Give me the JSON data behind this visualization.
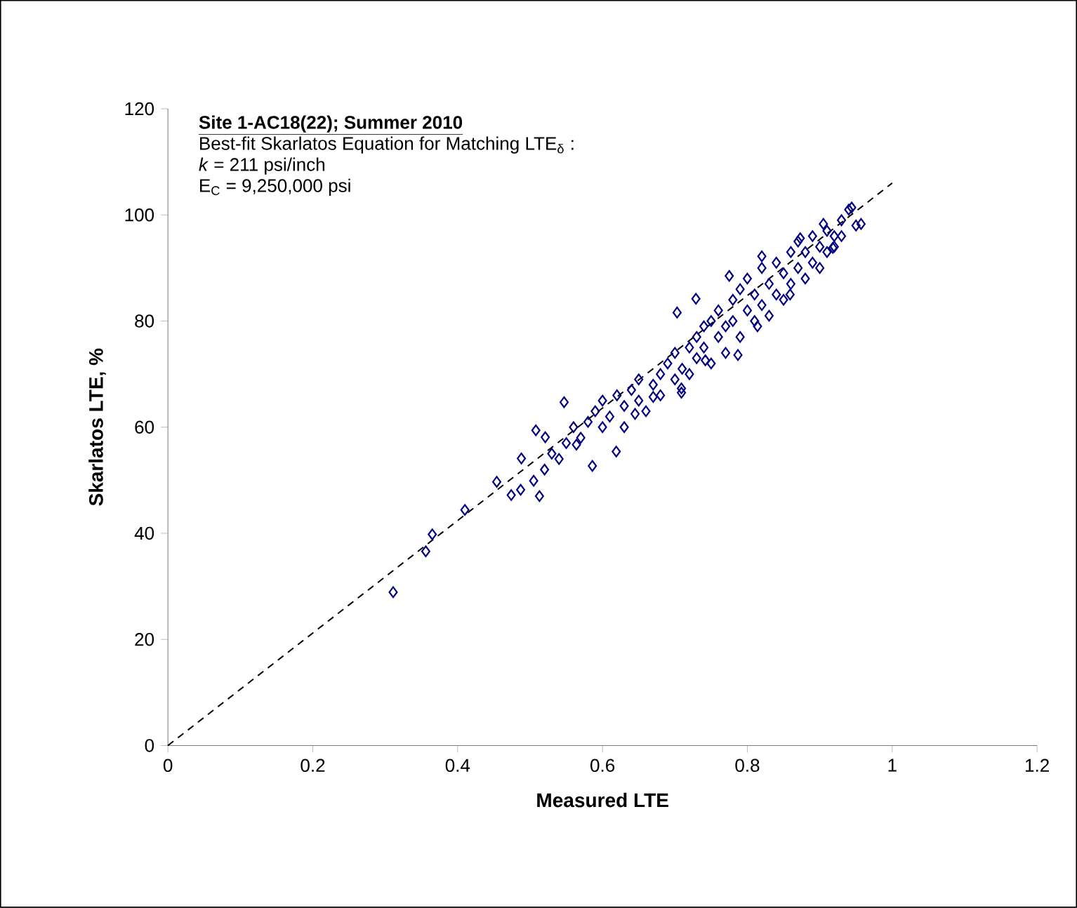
{
  "chart_data": {
    "type": "scatter",
    "title": "Site 1-AC18(22);  Summer 2010",
    "annotations": [
      "Best-fit Skarlatos Equation for Matching LTE$_{δ}$ :",
      "*k* = 211 psi/inch",
      "E$_{C}$ = 9,250,000 psi"
    ],
    "xlabel": "Measured LTE",
    "ylabel": "Skarlatos LTE, %",
    "xlim": [
      0,
      1.2
    ],
    "ylim": [
      0,
      120
    ],
    "xticks": [
      0,
      0.2,
      0.4,
      0.6,
      0.8,
      1,
      1.2
    ],
    "yticks": [
      0,
      20,
      40,
      60,
      80,
      100,
      120
    ],
    "series": [
      {
        "type": "line",
        "color": "#000000",
        "line_style": "dashed",
        "marker": "none",
        "x": [
          0,
          1
        ],
        "values": [
          0,
          106
        ]
      },
      {
        "color": "#000080",
        "marker": "diamond",
        "x": [
          0.311,
          0.356,
          0.365,
          0.41,
          0.454,
          0.474,
          0.487,
          0.513,
          0.505,
          0.586,
          0.619,
          0.564,
          0.488,
          0.508,
          0.521,
          0.547,
          0.645,
          0.67,
          0.709,
          0.944,
          0.905,
          0.873,
          0.82,
          0.775,
          0.729,
          0.703,
          0.957,
          0.918,
          0.859,
          0.814,
          0.787,
          0.742,
          0.709,
          0.52,
          0.53,
          0.54,
          0.55,
          0.56,
          0.57,
          0.58,
          0.59,
          0.6,
          0.6,
          0.61,
          0.62,
          0.63,
          0.63,
          0.64,
          0.65,
          0.65,
          0.66,
          0.67,
          0.68,
          0.68,
          0.69,
          0.7,
          0.7,
          0.71,
          0.72,
          0.72,
          0.73,
          0.73,
          0.74,
          0.74,
          0.75,
          0.75,
          0.76,
          0.76,
          0.77,
          0.77,
          0.78,
          0.78,
          0.79,
          0.79,
          0.8,
          0.8,
          0.81,
          0.81,
          0.82,
          0.82,
          0.83,
          0.83,
          0.84,
          0.84,
          0.85,
          0.85,
          0.86,
          0.86,
          0.87,
          0.87,
          0.88,
          0.88,
          0.89,
          0.89,
          0.9,
          0.9,
          0.91,
          0.91,
          0.92,
          0.92,
          0.93,
          0.93,
          0.94,
          0.95
        ],
        "values": [
          28.9,
          36.6,
          39.8,
          44.4,
          49.7,
          47.2,
          48.2,
          47,
          49.9,
          52.7,
          55.4,
          56.7,
          54.1,
          59.4,
          58.1,
          64.7,
          62.5,
          65.7,
          66.5,
          101.4,
          98.3,
          95.6,
          92.2,
          88.5,
          84.2,
          81.6,
          98.3,
          93.8,
          85,
          79,
          73.6,
          72.6,
          67.3,
          52,
          55,
          54,
          57,
          60,
          58,
          61,
          63,
          60,
          65,
          62,
          66,
          64,
          60,
          67,
          65,
          69,
          63,
          68,
          70,
          66,
          72,
          69,
          74,
          71,
          75,
          70,
          77,
          73,
          79,
          75,
          72,
          80,
          77,
          82,
          79,
          74,
          84,
          80,
          77,
          86,
          82,
          88,
          80,
          85,
          90,
          83,
          87,
          81,
          91,
          85,
          89,
          84,
          93,
          87,
          90,
          95,
          88,
          93,
          96,
          91,
          94,
          90,
          97,
          93,
          96,
          94,
          99,
          96,
          101,
          98
        ]
      }
    ]
  }
}
